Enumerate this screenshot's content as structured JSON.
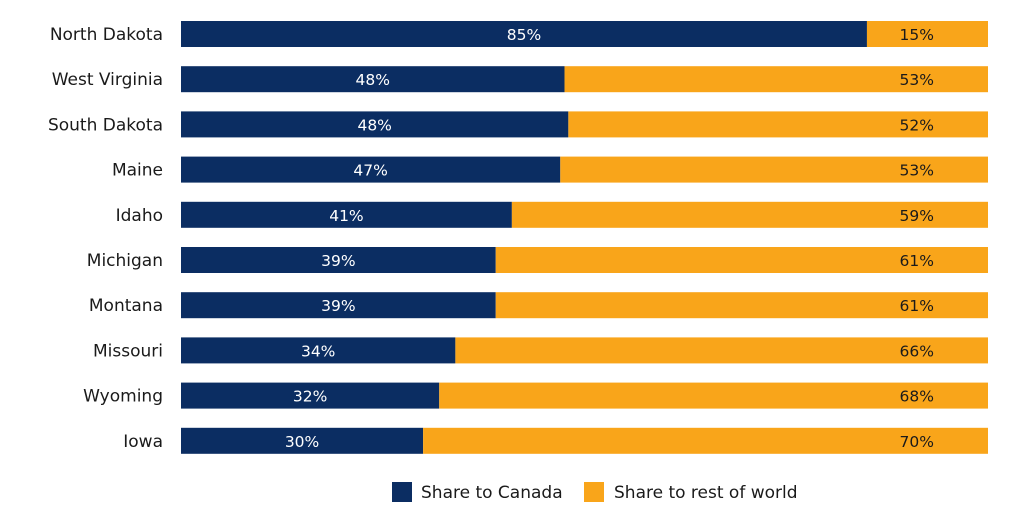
{
  "chart_data": {
    "type": "bar",
    "orientation": "horizontal",
    "stacked": true,
    "normalized": true,
    "categories": [
      "North Dakota",
      "West Virginia",
      "South Dakota",
      "Maine",
      "Idaho",
      "Michigan",
      "Montana",
      "Missouri",
      "Wyoming",
      "Iowa"
    ],
    "series": [
      {
        "name": "Share to Canada",
        "color": "#0b2d62",
        "label_color": "#ffffff",
        "values": [
          85,
          48,
          48,
          47,
          41,
          39,
          39,
          34,
          32,
          30
        ],
        "labels": [
          "85%",
          "48%",
          "48%",
          "47%",
          "41%",
          "39%",
          "39%",
          "34%",
          "32%",
          "30%"
        ]
      },
      {
        "name": "Share to rest of world",
        "color": "#f9a51a",
        "label_color": "#1a1a1a",
        "values": [
          15,
          53,
          52,
          53,
          59,
          61,
          61,
          66,
          68,
          70
        ],
        "labels": [
          "15%",
          "53%",
          "52%",
          "53%",
          "59%",
          "61%",
          "61%",
          "66%",
          "68%",
          "70%"
        ]
      }
    ],
    "legend_position": "bottom-center",
    "grid": false
  }
}
